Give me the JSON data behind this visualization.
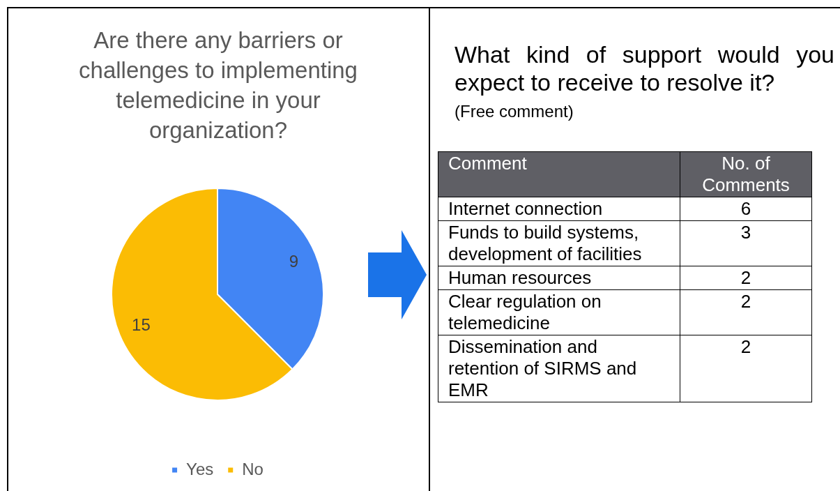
{
  "chart_data": [
    {
      "type": "pie",
      "title": "Are there any barriers or challenges to implementing telemedicine in your organization?",
      "categories": [
        "Yes",
        "No"
      ],
      "values": [
        9,
        15
      ],
      "colors": [
        "#4285f4",
        "#fbbc04"
      ],
      "data_labels": true,
      "legend": "bottom"
    },
    {
      "type": "other",
      "title": "What kind of support would you expect to receive to resolve it?",
      "subtitle": "(Free comment)",
      "xlabel": "Comment",
      "ylabel": "No. of Comments",
      "categories": [
        "Internet connection",
        "Funds to build systems, development of facilities",
        "Human resources",
        "Clear regulation on telemedicine",
        "Dissemination and retention of SIRMS and EMR"
      ],
      "values": [
        6,
        3,
        2,
        2,
        2
      ],
      "data_labels": true
    }
  ]
}
